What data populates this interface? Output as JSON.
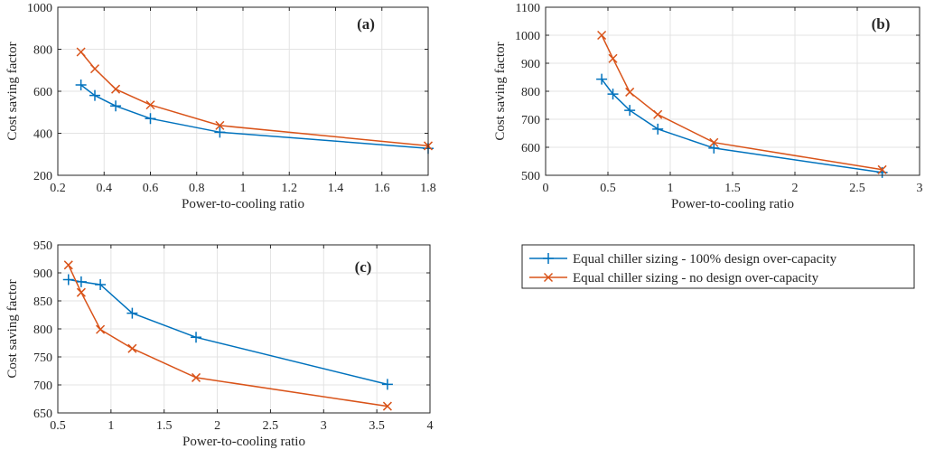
{
  "legend": {
    "entries": [
      {
        "label": "Equal chiller sizing - 100% design over-capacity",
        "color": "#0072BD",
        "marker": "plus"
      },
      {
        "label": "Equal chiller sizing - no design over-capacity",
        "color": "#D95319",
        "marker": "cross"
      }
    ]
  },
  "chart_data": [
    {
      "type": "line",
      "panel_label": "(a)",
      "xlabel": "Power-to-cooling ratio",
      "ylabel": "Cost saving factor",
      "xlim": [
        0.2,
        1.8
      ],
      "ylim": [
        200,
        1000
      ],
      "xticks": [
        0.2,
        0.4,
        0.6,
        0.8,
        1,
        1.2,
        1.4,
        1.6,
        1.8
      ],
      "yticks": [
        200,
        400,
        600,
        800,
        1000
      ],
      "grid": true,
      "series": [
        {
          "name": "Equal chiller sizing - 100% design over-capacity",
          "x": [
            0.3,
            0.36,
            0.45,
            0.6,
            0.9,
            1.8
          ],
          "y": [
            630,
            580,
            530,
            470,
            405,
            328
          ]
        },
        {
          "name": "Equal chiller sizing - no design over-capacity",
          "x": [
            0.3,
            0.36,
            0.45,
            0.6,
            0.9,
            1.8
          ],
          "y": [
            787,
            707,
            610,
            535,
            437,
            340
          ]
        }
      ]
    },
    {
      "type": "line",
      "panel_label": "(b)",
      "xlabel": "Power-to-cooling ratio",
      "ylabel": "Cost saving factor",
      "xlim": [
        0,
        3
      ],
      "ylim": [
        500,
        1100
      ],
      "xticks": [
        0,
        0.5,
        1,
        1.5,
        2,
        2.5,
        3
      ],
      "yticks": [
        500,
        600,
        700,
        800,
        900,
        1000,
        1100
      ],
      "grid": true,
      "series": [
        {
          "name": "Equal chiller sizing - 100% design over-capacity",
          "x": [
            0.45,
            0.54,
            0.675,
            0.9,
            1.35,
            2.7
          ],
          "y": [
            843,
            790,
            732,
            665,
            597,
            510
          ]
        },
        {
          "name": "Equal chiller sizing - no design over-capacity",
          "x": [
            0.45,
            0.54,
            0.675,
            0.9,
            1.35,
            2.7
          ],
          "y": [
            1000,
            917,
            797,
            717,
            617,
            520
          ]
        }
      ]
    },
    {
      "type": "line",
      "panel_label": "(c)",
      "xlabel": "Power-to-cooling ratio",
      "ylabel": "Cost saving factor",
      "xlim": [
        0.5,
        4
      ],
      "ylim": [
        650,
        950
      ],
      "xticks": [
        0.5,
        1,
        1.5,
        2,
        2.5,
        3,
        3.5,
        4
      ],
      "yticks": [
        650,
        700,
        750,
        800,
        850,
        900,
        950
      ],
      "grid": true,
      "series": [
        {
          "name": "Equal chiller sizing - 100% design over-capacity",
          "x": [
            0.6,
            0.72,
            0.9,
            1.2,
            1.8,
            3.6
          ],
          "y": [
            888,
            884,
            879,
            828,
            785,
            701
          ]
        },
        {
          "name": "Equal chiller sizing - no design over-capacity",
          "x": [
            0.6,
            0.72,
            0.9,
            1.2,
            1.8,
            3.6
          ],
          "y": [
            914,
            865,
            799,
            765,
            713,
            662
          ]
        }
      ]
    }
  ]
}
